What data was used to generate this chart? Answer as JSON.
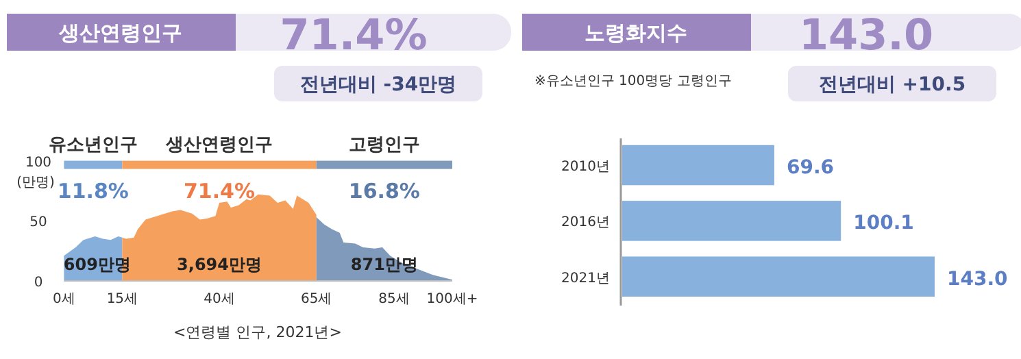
{
  "chart_data": [
    {
      "type": "area",
      "title": "생산연령인구",
      "subtitle": "71.4%",
      "ylabel": "(만명)",
      "xlim": [
        0,
        100
      ],
      "ylim": [
        0,
        100
      ],
      "yticks": [
        0,
        50,
        100
      ],
      "xticks": [
        {
          "value": 0,
          "label": "0세"
        },
        {
          "value": 15,
          "label": "15세"
        },
        {
          "value": 40,
          "label": "40세"
        },
        {
          "value": 65,
          "label": "65세"
        },
        {
          "value": 85,
          "label": "85세"
        },
        {
          "value": 100,
          "label": "100세+"
        }
      ],
      "series": [
        {
          "color": "#86afdc",
          "x": [
            0,
            3,
            5,
            8,
            10,
            12,
            14,
            15
          ],
          "values": [
            21,
            28,
            34,
            37,
            35,
            34,
            37,
            36
          ]
        },
        {
          "color": "#f6a05e",
          "x": [
            15,
            16,
            18,
            19,
            21,
            24,
            28,
            30,
            33,
            35,
            37,
            39,
            40,
            42,
            43,
            45,
            47,
            48,
            50,
            53,
            55,
            57,
            59,
            60,
            63,
            65
          ],
          "values": [
            36,
            35,
            36,
            43,
            51,
            54,
            58,
            59,
            56,
            51,
            52,
            54,
            65,
            66,
            61,
            63,
            68,
            67,
            72,
            71,
            65,
            67,
            60,
            71,
            65,
            55
          ]
        },
        {
          "color": "#7f9aba",
          "x": [
            65,
            67,
            69,
            71,
            72,
            75,
            77,
            80,
            82,
            84,
            87,
            91,
            95,
            100
          ],
          "values": [
            53,
            47,
            43,
            40,
            32,
            31,
            28,
            27,
            28,
            21,
            15,
            10,
            5,
            1
          ]
        }
      ],
      "annotations": [
        "전년대비 -34만명",
        "<연령별 인구, 2021년>",
        "유소년인구",
        "생산연령인구",
        "고령인구",
        "11.8%",
        "71.4%",
        "16.8%",
        "609만명",
        "3,694만명",
        "871만명"
      ]
    },
    {
      "type": "bar",
      "orientation": "horizontal",
      "title": "노령화지수",
      "subtitle": "143.0",
      "categories": [
        "2010년",
        "2016년",
        "2021년"
      ],
      "values": [
        69.6,
        100.1,
        143.0
      ],
      "color": "#89b1dd",
      "value_labels": [
        "69.6",
        "100.1",
        "143.0"
      ],
      "annotations": [
        "※유소년인구 100명당 고령인구",
        "전년대비 +10.5"
      ]
    }
  ]
}
